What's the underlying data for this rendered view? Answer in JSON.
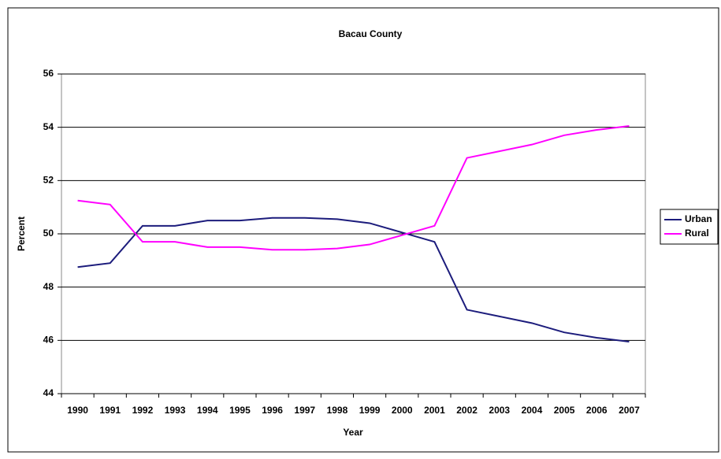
{
  "chart_data": {
    "type": "line",
    "title": "Bacau County",
    "x_label": "Year",
    "y_label": "Percent",
    "categories": [
      "1990",
      "1991",
      "1992",
      "1993",
      "1994",
      "1995",
      "1996",
      "1997",
      "1998",
      "1999",
      "2000",
      "2001",
      "2002",
      "2003",
      "2004",
      "2005",
      "2006",
      "2007"
    ],
    "series": [
      {
        "name": "Urban",
        "color": "#1c1c7c",
        "values": [
          48.75,
          48.9,
          50.3,
          50.3,
          50.5,
          50.5,
          50.6,
          50.6,
          50.55,
          50.4,
          50.05,
          49.7,
          47.15,
          46.9,
          46.65,
          46.3,
          46.1,
          45.95
        ]
      },
      {
        "name": "Rural",
        "color": "#ff00ff",
        "values": [
          51.25,
          51.1,
          49.7,
          49.7,
          49.5,
          49.5,
          49.4,
          49.4,
          49.45,
          49.6,
          49.95,
          50.3,
          52.85,
          53.1,
          53.35,
          53.7,
          53.9,
          54.05
        ]
      }
    ],
    "ylim": [
      44,
      56
    ],
    "yticks": [
      44,
      46,
      48,
      50,
      52,
      54,
      56
    ],
    "grid": true,
    "legend": "right"
  }
}
